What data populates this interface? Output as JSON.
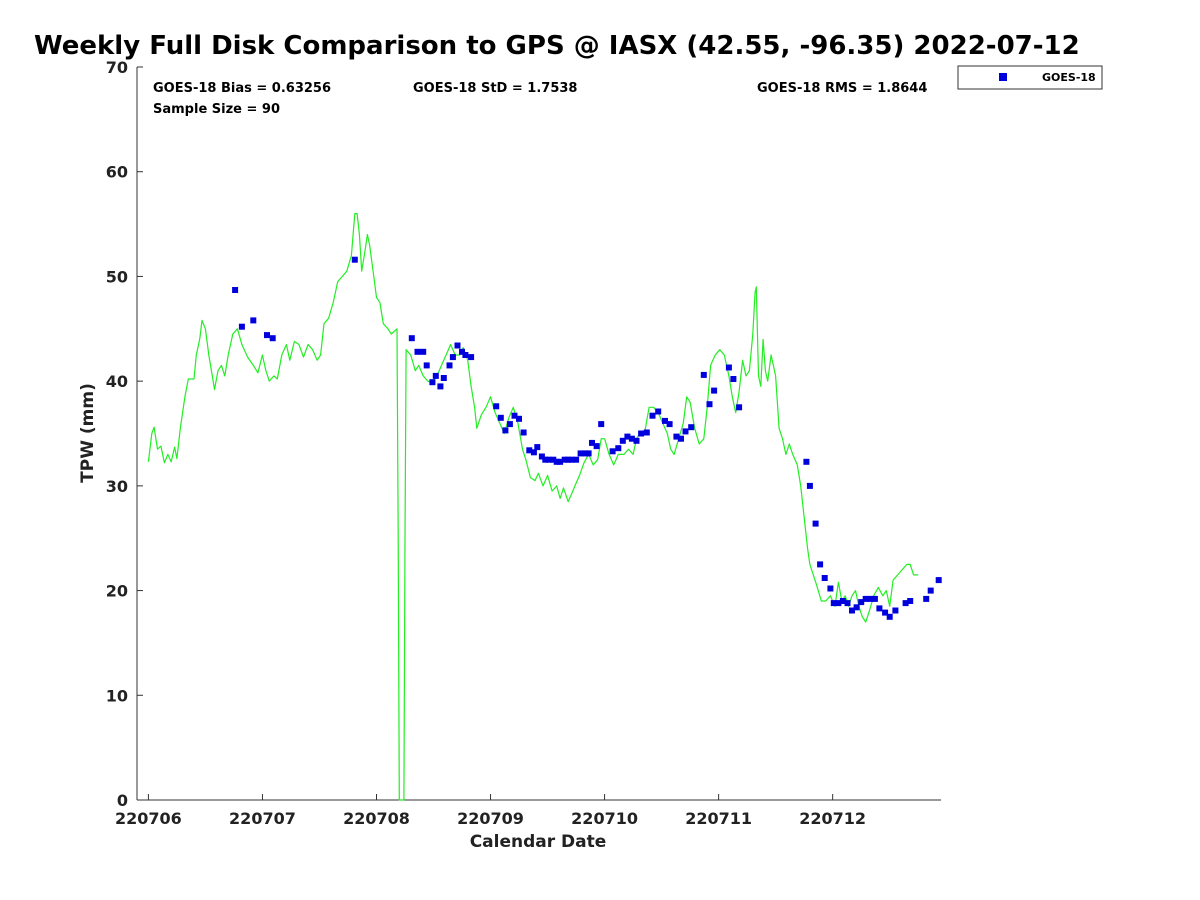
{
  "chart_data": {
    "type": "scatter",
    "title": "Weekly Full Disk Comparison to GPS @ IASX (42.55, -96.35) 2022-07-12",
    "xlabel": "Calendar Date",
    "ylabel": "TPW (mm)",
    "xlim": [
      -0.1,
      6.95
    ],
    "ylim": [
      0,
      70
    ],
    "x_ticks": [
      0,
      1,
      2,
      3,
      4,
      5,
      6
    ],
    "x_tick_labels": [
      "220706",
      "220707",
      "220708",
      "220709",
      "220710",
      "220711",
      "220712"
    ],
    "y_ticks": [
      0,
      10,
      20,
      30,
      40,
      50,
      60,
      70
    ],
    "y_tick_labels": [
      "0",
      "10",
      "20",
      "30",
      "40",
      "50",
      "60",
      "70"
    ],
    "stats": {
      "bias": "GOES-18 Bias = 0.63256",
      "std": "GOES-18 StD = 1.7538",
      "rms": "GOES-18 RMS = 1.8644",
      "sample_size": "Sample Size = 90"
    },
    "legend": {
      "label": "GOES-18",
      "position": "top-right-outside"
    },
    "colors": {
      "goes": "#0000dd",
      "gps": "#22ee22"
    },
    "series": [
      {
        "name": "GPS",
        "style": "line",
        "points": [
          [
            0.0,
            32.3
          ],
          [
            0.03,
            35.0
          ],
          [
            0.05,
            35.6
          ],
          [
            0.08,
            33.5
          ],
          [
            0.11,
            33.8
          ],
          [
            0.14,
            32.2
          ],
          [
            0.17,
            33.0
          ],
          [
            0.2,
            32.3
          ],
          [
            0.23,
            33.7
          ],
          [
            0.25,
            32.6
          ],
          [
            0.28,
            35.5
          ],
          [
            0.32,
            38.5
          ],
          [
            0.35,
            40.2
          ],
          [
            0.4,
            40.2
          ],
          [
            0.42,
            42.5
          ],
          [
            0.45,
            44.0
          ],
          [
            0.47,
            45.8
          ],
          [
            0.5,
            45.0
          ],
          [
            0.53,
            42.5
          ],
          [
            0.56,
            40.5
          ],
          [
            0.58,
            39.2
          ],
          [
            0.61,
            41.0
          ],
          [
            0.64,
            41.5
          ],
          [
            0.67,
            40.5
          ],
          [
            0.7,
            42.5
          ],
          [
            0.74,
            44.5
          ],
          [
            0.78,
            45.0
          ],
          [
            0.82,
            43.5
          ],
          [
            0.87,
            42.3
          ],
          [
            0.92,
            41.5
          ],
          [
            0.96,
            40.8
          ],
          [
            1.0,
            42.5
          ],
          [
            1.03,
            41.0
          ],
          [
            1.06,
            40.0
          ],
          [
            1.1,
            40.5
          ],
          [
            1.13,
            40.2
          ],
          [
            1.17,
            42.5
          ],
          [
            1.21,
            43.5
          ],
          [
            1.24,
            42.0
          ],
          [
            1.28,
            43.8
          ],
          [
            1.32,
            43.5
          ],
          [
            1.36,
            42.3
          ],
          [
            1.4,
            43.5
          ],
          [
            1.44,
            43.0
          ],
          [
            1.48,
            42.0
          ],
          [
            1.51,
            42.5
          ],
          [
            1.54,
            45.5
          ],
          [
            1.58,
            46.0
          ],
          [
            1.62,
            47.5
          ],
          [
            1.66,
            49.5
          ],
          [
            1.7,
            50.0
          ],
          [
            1.74,
            50.5
          ],
          [
            1.78,
            52.0
          ],
          [
            1.81,
            56.0
          ],
          [
            1.83,
            56.0
          ],
          [
            1.85,
            54.0
          ],
          [
            1.87,
            50.5
          ],
          [
            1.9,
            52.5
          ],
          [
            1.92,
            54.0
          ],
          [
            1.94,
            53.0
          ],
          [
            1.97,
            50.5
          ],
          [
            2.0,
            48.0
          ],
          [
            2.03,
            47.5
          ],
          [
            2.06,
            45.5
          ],
          [
            2.1,
            45.0
          ],
          [
            2.13,
            44.5
          ],
          [
            2.16,
            44.8
          ],
          [
            2.18,
            45.0
          ],
          [
            2.19,
            25.0
          ],
          [
            2.2,
            0.0
          ],
          [
            2.24,
            0.0
          ],
          [
            2.25,
            25.0
          ],
          [
            2.26,
            43.0
          ],
          [
            2.3,
            42.5
          ],
          [
            2.34,
            41.0
          ],
          [
            2.37,
            41.5
          ],
          [
            2.41,
            40.5
          ],
          [
            2.45,
            40.0
          ],
          [
            2.49,
            39.8
          ],
          [
            2.53,
            40.5
          ],
          [
            2.57,
            41.5
          ],
          [
            2.61,
            42.5
          ],
          [
            2.65,
            43.5
          ],
          [
            2.69,
            42.5
          ],
          [
            2.73,
            42.5
          ],
          [
            2.76,
            43.2
          ],
          [
            2.8,
            42.0
          ],
          [
            2.83,
            39.5
          ],
          [
            2.86,
            37.5
          ],
          [
            2.88,
            35.5
          ],
          [
            2.92,
            36.8
          ],
          [
            2.96,
            37.5
          ],
          [
            3.0,
            38.5
          ],
          [
            3.04,
            37.0
          ],
          [
            3.08,
            36.0
          ],
          [
            3.12,
            35.0
          ],
          [
            3.16,
            36.5
          ],
          [
            3.2,
            37.5
          ],
          [
            3.24,
            36.0
          ],
          [
            3.28,
            33.5
          ],
          [
            3.31,
            32.5
          ],
          [
            3.35,
            30.8
          ],
          [
            3.39,
            30.5
          ],
          [
            3.42,
            31.2
          ],
          [
            3.46,
            30.0
          ],
          [
            3.5,
            31.0
          ],
          [
            3.54,
            29.5
          ],
          [
            3.58,
            30.0
          ],
          [
            3.61,
            28.8
          ],
          [
            3.64,
            29.8
          ],
          [
            3.68,
            28.5
          ],
          [
            3.71,
            29.2
          ],
          [
            3.74,
            30.0
          ],
          [
            3.78,
            31.0
          ],
          [
            3.82,
            32.2
          ],
          [
            3.86,
            33.0
          ],
          [
            3.9,
            32.0
          ],
          [
            3.94,
            32.5
          ],
          [
            3.97,
            34.5
          ],
          [
            4.0,
            34.5
          ],
          [
            4.04,
            33.0
          ],
          [
            4.08,
            32.0
          ],
          [
            4.12,
            33.0
          ],
          [
            4.17,
            33.0
          ],
          [
            4.21,
            33.5
          ],
          [
            4.25,
            33.0
          ],
          [
            4.28,
            34.5
          ],
          [
            4.31,
            35.0
          ],
          [
            4.35,
            35.0
          ],
          [
            4.39,
            37.5
          ],
          [
            4.43,
            37.5
          ],
          [
            4.47,
            37.0
          ],
          [
            4.51,
            36.0
          ],
          [
            4.55,
            35.0
          ],
          [
            4.58,
            33.5
          ],
          [
            4.61,
            33.0
          ],
          [
            4.65,
            34.5
          ],
          [
            4.69,
            36.0
          ],
          [
            4.72,
            38.5
          ],
          [
            4.75,
            38.0
          ],
          [
            4.79,
            35.5
          ],
          [
            4.83,
            34.0
          ],
          [
            4.87,
            34.5
          ],
          [
            4.9,
            37.5
          ],
          [
            4.93,
            41.5
          ],
          [
            4.97,
            42.5
          ],
          [
            5.01,
            43.0
          ],
          [
            5.05,
            42.5
          ],
          [
            5.09,
            40.5
          ],
          [
            5.12,
            38.5
          ],
          [
            5.15,
            37.0
          ],
          [
            5.18,
            39.0
          ],
          [
            5.21,
            42.0
          ],
          [
            5.24,
            40.5
          ],
          [
            5.27,
            41.0
          ],
          [
            5.3,
            44.5
          ],
          [
            5.32,
            48.5
          ],
          [
            5.33,
            49.0
          ],
          [
            5.35,
            40.5
          ],
          [
            5.37,
            39.5
          ],
          [
            5.39,
            44.0
          ],
          [
            5.41,
            41.0
          ],
          [
            5.43,
            40.0
          ],
          [
            5.46,
            42.5
          ],
          [
            5.5,
            40.5
          ],
          [
            5.53,
            35.5
          ],
          [
            5.56,
            34.5
          ],
          [
            5.59,
            33.0
          ],
          [
            5.62,
            34.0
          ],
          [
            5.65,
            33.0
          ],
          [
            5.69,
            32.0
          ],
          [
            5.72,
            30.0
          ],
          [
            5.74,
            28.0
          ],
          [
            5.76,
            26.0
          ],
          [
            5.78,
            24.0
          ],
          [
            5.8,
            22.5
          ],
          [
            5.83,
            21.5
          ],
          [
            5.86,
            20.5
          ],
          [
            5.9,
            19.0
          ],
          [
            5.94,
            19.0
          ],
          [
            5.98,
            19.5
          ],
          [
            6.02,
            18.5
          ],
          [
            6.05,
            20.8
          ],
          [
            6.08,
            19.0
          ],
          [
            6.11,
            19.5
          ],
          [
            6.14,
            18.5
          ],
          [
            6.17,
            19.5
          ],
          [
            6.2,
            20.0
          ],
          [
            6.23,
            18.5
          ],
          [
            6.26,
            17.5
          ],
          [
            6.29,
            17.0
          ],
          [
            6.32,
            18.0
          ],
          [
            6.36,
            19.5
          ],
          [
            6.4,
            20.3
          ],
          [
            6.44,
            19.5
          ],
          [
            6.47,
            20.0
          ],
          [
            6.5,
            18.5
          ],
          [
            6.53,
            21.0
          ],
          [
            6.57,
            21.5
          ],
          [
            6.61,
            22.0
          ],
          [
            6.65,
            22.5
          ],
          [
            6.68,
            22.5
          ],
          [
            6.71,
            21.5
          ],
          [
            6.75,
            21.5
          ]
        ]
      },
      {
        "name": "GOES-18",
        "style": "marker",
        "points": [
          [
            0.76,
            48.7
          ],
          [
            0.82,
            45.2
          ],
          [
            0.92,
            45.8
          ],
          [
            1.04,
            44.4
          ],
          [
            1.09,
            44.1
          ],
          [
            1.81,
            51.6
          ],
          [
            2.31,
            44.1
          ],
          [
            2.36,
            42.8
          ],
          [
            2.41,
            42.8
          ],
          [
            2.44,
            41.5
          ],
          [
            2.49,
            39.9
          ],
          [
            2.52,
            40.5
          ],
          [
            2.56,
            39.5
          ],
          [
            2.59,
            40.3
          ],
          [
            2.64,
            41.5
          ],
          [
            2.67,
            42.3
          ],
          [
            2.71,
            43.4
          ],
          [
            2.75,
            42.8
          ],
          [
            2.78,
            42.5
          ],
          [
            2.83,
            42.3
          ],
          [
            3.05,
            37.6
          ],
          [
            3.09,
            36.5
          ],
          [
            3.13,
            35.3
          ],
          [
            3.17,
            35.9
          ],
          [
            3.21,
            36.7
          ],
          [
            3.25,
            36.4
          ],
          [
            3.29,
            35.1
          ],
          [
            3.34,
            33.4
          ],
          [
            3.38,
            33.2
          ],
          [
            3.41,
            33.7
          ],
          [
            3.45,
            32.8
          ],
          [
            3.48,
            32.5
          ],
          [
            3.51,
            32.5
          ],
          [
            3.55,
            32.5
          ],
          [
            3.58,
            32.3
          ],
          [
            3.61,
            32.3
          ],
          [
            3.65,
            32.5
          ],
          [
            3.68,
            32.5
          ],
          [
            3.71,
            32.5
          ],
          [
            3.75,
            32.5
          ],
          [
            3.79,
            33.1
          ],
          [
            3.83,
            33.1
          ],
          [
            3.86,
            33.1
          ],
          [
            3.89,
            34.1
          ],
          [
            3.93,
            33.8
          ],
          [
            3.97,
            35.9
          ],
          [
            4.07,
            33.3
          ],
          [
            4.12,
            33.6
          ],
          [
            4.16,
            34.3
          ],
          [
            4.2,
            34.7
          ],
          [
            4.24,
            34.5
          ],
          [
            4.28,
            34.3
          ],
          [
            4.32,
            35.0
          ],
          [
            4.37,
            35.1
          ],
          [
            4.42,
            36.7
          ],
          [
            4.47,
            37.1
          ],
          [
            4.53,
            36.2
          ],
          [
            4.57,
            35.9
          ],
          [
            4.63,
            34.7
          ],
          [
            4.67,
            34.5
          ],
          [
            4.71,
            35.2
          ],
          [
            4.76,
            35.6
          ],
          [
            4.87,
            40.6
          ],
          [
            4.92,
            37.8
          ],
          [
            4.96,
            39.1
          ],
          [
            5.09,
            41.3
          ],
          [
            5.13,
            40.2
          ],
          [
            5.18,
            37.5
          ],
          [
            5.77,
            32.3
          ],
          [
            5.8,
            30.0
          ],
          [
            5.85,
            26.4
          ],
          [
            5.89,
            22.5
          ],
          [
            5.93,
            21.2
          ],
          [
            5.98,
            20.2
          ],
          [
            6.01,
            18.8
          ],
          [
            6.05,
            18.8
          ],
          [
            6.09,
            19.0
          ],
          [
            6.13,
            18.8
          ],
          [
            6.17,
            18.1
          ],
          [
            6.21,
            18.4
          ],
          [
            6.25,
            18.9
          ],
          [
            6.29,
            19.2
          ],
          [
            6.33,
            19.2
          ],
          [
            6.37,
            19.2
          ],
          [
            6.41,
            18.3
          ],
          [
            6.46,
            17.9
          ],
          [
            6.5,
            17.5
          ],
          [
            6.55,
            18.1
          ],
          [
            6.64,
            18.8
          ],
          [
            6.68,
            19.0
          ],
          [
            6.82,
            19.2
          ],
          [
            6.86,
            20.0
          ],
          [
            6.93,
            21.0
          ]
        ]
      }
    ]
  }
}
